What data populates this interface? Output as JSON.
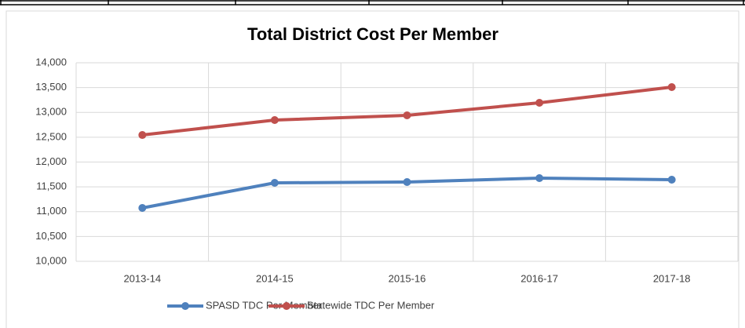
{
  "chart_data": {
    "type": "line",
    "title": "Total District Cost Per Member",
    "categories": [
      "2013-14",
      "2014-15",
      "2015-16",
      "2016-17",
      "2017-18"
    ],
    "series": [
      {
        "name": "SPASD TDC Per Member",
        "color": "#4f81bd",
        "values": [
          11075,
          11581,
          11597,
          11676,
          11644
        ]
      },
      {
        "name": "Statewide TDC Per Member",
        "color": "#c0504d",
        "values": [
          12545,
          12846,
          12941,
          13194,
          13510
        ]
      }
    ],
    "ylim": [
      10000,
      14000
    ],
    "yticks": [
      {
        "value": 10000,
        "label": "10,000"
      },
      {
        "value": 10500,
        "label": "10,500"
      },
      {
        "value": 11000,
        "label": "11,000"
      },
      {
        "value": 11500,
        "label": "11,500"
      },
      {
        "value": 12000,
        "label": "12,000"
      },
      {
        "value": 12500,
        "label": "12,500"
      },
      {
        "value": 13000,
        "label": "13,000"
      },
      {
        "value": 13500,
        "label": "13,500"
      },
      {
        "value": 14000,
        "label": "14,000"
      }
    ],
    "grid": true,
    "legend": "bottom"
  }
}
